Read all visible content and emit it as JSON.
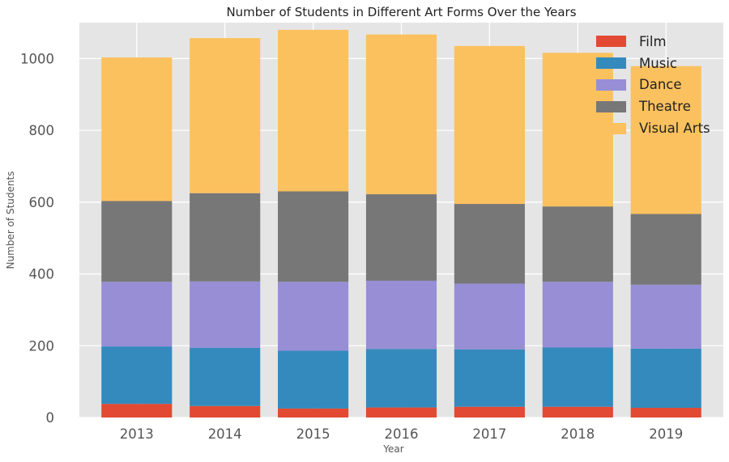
{
  "chart_data": {
    "type": "bar",
    "stacked": true,
    "title": "Number of Students in Different Art Forms Over the Years",
    "xlabel": "Year",
    "ylabel": "Number of Students",
    "categories": [
      "2013",
      "2014",
      "2015",
      "2016",
      "2017",
      "2018",
      "2019"
    ],
    "ylim": [
      0,
      1100
    ],
    "yticks": [
      0,
      200,
      400,
      600,
      800,
      1000
    ],
    "grid": true,
    "legend_position": "top-right",
    "series": [
      {
        "name": "Film",
        "color": "#E24A33",
        "values": [
          38,
          32,
          25,
          28,
          30,
          30,
          27
        ]
      },
      {
        "name": "Music",
        "color": "#348ABD",
        "values": [
          160,
          162,
          161,
          163,
          160,
          165,
          165
        ]
      },
      {
        "name": "Dance",
        "color": "#988ED5",
        "values": [
          180,
          185,
          192,
          190,
          183,
          183,
          178
        ]
      },
      {
        "name": "Theatre",
        "color": "#777777",
        "values": [
          225,
          246,
          252,
          241,
          222,
          210,
          197
        ]
      },
      {
        "name": "Visual Arts",
        "color": "#FBC15E",
        "values": [
          400,
          432,
          450,
          445,
          440,
          428,
          412
        ]
      }
    ]
  }
}
